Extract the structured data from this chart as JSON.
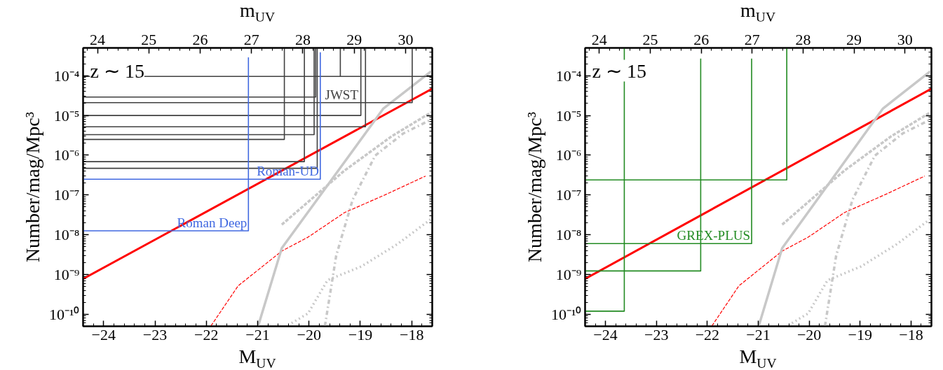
{
  "chart_data": [
    {
      "type": "line",
      "xlabel": "M$_{UV}$",
      "x2label": "m$_{UV}$",
      "ylabel": "Number/mag/Mpc³",
      "log": "y",
      "xlim": [
        -24.4,
        -17.6
      ],
      "x2lim": [
        23.72,
        30.52
      ],
      "ylim": [
        5e-11,
        0.0005
      ],
      "xticks": [
        {
          "value": -24,
          "label": "−24"
        },
        {
          "value": -23,
          "label": "−23"
        },
        {
          "value": -22,
          "label": "−22"
        },
        {
          "value": -21,
          "label": "−21"
        },
        {
          "value": -20,
          "label": "−20"
        },
        {
          "value": -19,
          "label": "−19"
        },
        {
          "value": -18,
          "label": "−18"
        }
      ],
      "x2ticks": [
        24,
        25,
        26,
        27,
        28,
        29,
        30
      ],
      "yticks": [
        {
          "value": 1e-10,
          "label": "10⁻¹⁰"
        },
        {
          "value": 1e-09,
          "label": "10⁻⁹"
        },
        {
          "value": 1e-08,
          "label": "10⁻⁸"
        },
        {
          "value": 1e-07,
          "label": "10⁻⁷"
        },
        {
          "value": 1e-06,
          "label": "10⁻⁶"
        },
        {
          "value": 1e-05,
          "label": "10⁻⁵"
        },
        {
          "value": 0.0001,
          "label": "10⁻⁴"
        }
      ],
      "annotations": [
        "z ∼ 15",
        {
          "text": "JWST",
          "x": -19.04,
          "y": 2.1e-05
        }
      ],
      "series": [
        {
          "color": "#ff0000",
          "x": [
            -24.4,
            -17.6
          ],
          "values": [
            7.8e-10,
            4.7e-05
          ]
        },
        {
          "color": "#ff0000",
          "line_style": "dashed",
          "x": [
            -21.91,
            -21.38,
            -20.53,
            -20.02,
            -19.31,
            -18.49,
            -17.73
          ],
          "values": [
            5.1e-11,
            5.2e-10,
            3.9e-09,
            8.7e-09,
            3.6e-08,
            1.05e-07,
            3e-07
          ]
        },
        {
          "color": "#c8c8c8",
          "x": [
            -20.99,
            -20.53,
            -18.55,
            -17.62
          ],
          "values": [
            5.1e-11,
            4.6e-09,
            1.5e-05,
            0.00013
          ]
        },
        {
          "color": "#c8c8c8",
          "line_style": "dashed",
          "x": [
            -20.53,
            -19.31,
            -18.39,
            -17.62
          ],
          "values": [
            1.8e-08,
            4.1e-07,
            3e-06,
            1.2e-05
          ]
        },
        {
          "color": "#c8c8c8",
          "line_style": "dashdot",
          "x": [
            -19.69,
            -19.47,
            -19.15,
            -18.71,
            -18.17,
            -17.62
          ],
          "values": [
            5.1e-11,
            3e-09,
            7.6e-08,
            9.8e-07,
            3.5e-06,
            7.9e-06
          ]
        },
        {
          "color": "#c8c8c8",
          "line_style": "dotted",
          "x": [
            -20.34,
            -20.02,
            -19.64,
            -18.98,
            -18.28,
            -17.62
          ],
          "values": [
            6e-11,
            1.05e-10,
            7.2e-10,
            1.6e-09,
            5.8e-09,
            2.5e-08
          ]
        },
        {
          "color": "#404040",
          "x": [
            -24.4,
            -20.48,
            -20.48
          ],
          "values": [
            2.5e-06,
            2.5e-06,
            0.0005
          ]
        },
        {
          "color": "#404040",
          "x": [
            -24.4,
            -20.09,
            -20.09
          ],
          "values": [
            6.9e-07,
            6.9e-07,
            0.0005
          ]
        },
        {
          "color": "#404040",
          "x": [
            -24.4,
            -19.9,
            -19.9
          ],
          "values": [
            3.3e-06,
            3.3e-06,
            0.0005
          ]
        },
        {
          "color": "#404040",
          "x": [
            -24.4,
            -19.87,
            -19.87
          ],
          "values": [
            2.9e-05,
            2.9e-05,
            0.0005
          ]
        },
        {
          "color": "#404040",
          "x": [
            -24.4,
            -19.84,
            -19.84
          ],
          "values": [
            4.7e-07,
            4.7e-07,
            0.0005
          ]
        },
        {
          "color": "#404040",
          "x": [
            -24.4,
            -19.39,
            -19.39
          ],
          "values": [
            9.6e-05,
            9.6e-05,
            0.0005
          ]
        },
        {
          "color": "#404040",
          "x": [
            -19.39,
            -17.6
          ],
          "values": [
            9.6e-05,
            9.6e-05
          ]
        },
        {
          "color": "#404040",
          "x": [
            -24.4,
            -18.99,
            -18.99
          ],
          "values": [
            1e-05,
            1e-05,
            0.0005
          ]
        },
        {
          "color": "#404040",
          "x": [
            -24.4,
            -18.9,
            -18.9
          ],
          "values": [
            5.2e-06,
            5.2e-06,
            0.0005
          ]
        },
        {
          "color": "#404040",
          "x": [
            -24.4,
            -17.99,
            -17.99
          ],
          "values": [
            2.1e-05,
            2.1e-05,
            0.0005
          ]
        },
        {
          "name": "Roman Deep",
          "color": "#4169e1",
          "x": [
            -24.4,
            -21.18,
            -21.18
          ],
          "values": [
            1.26e-08,
            1.26e-08,
            0.00029
          ]
        },
        {
          "name": "Roman-UD",
          "color": "#4169e1",
          "x": [
            -24.4,
            -19.78,
            -19.78
          ],
          "values": [
            2.5e-07,
            2.5e-07,
            0.00039
          ]
        }
      ]
    },
    {
      "type": "line",
      "xlabel": "M$_{UV}$",
      "x2label": "m$_{UV}$",
      "ylabel": "Number/mag/Mpc³",
      "log": "y",
      "xlim": [
        -24.4,
        -17.6
      ],
      "x2lim": [
        23.72,
        30.52
      ],
      "ylim": [
        5e-11,
        0.0005
      ],
      "xticks": [
        {
          "value": -24,
          "label": "−24"
        },
        {
          "value": -23,
          "label": "−23"
        },
        {
          "value": -22,
          "label": "−22"
        },
        {
          "value": -21,
          "label": "−21"
        },
        {
          "value": -20,
          "label": "−20"
        },
        {
          "value": -19,
          "label": "−19"
        },
        {
          "value": -18,
          "label": "−18"
        }
      ],
      "x2ticks": [
        24,
        25,
        26,
        27,
        28,
        29,
        30
      ],
      "yticks": [
        {
          "value": 1e-10,
          "label": "10⁻¹⁰"
        },
        {
          "value": 1e-09,
          "label": "10⁻⁹"
        },
        {
          "value": 1e-08,
          "label": "10⁻⁸"
        },
        {
          "value": 1e-07,
          "label": "10⁻⁷"
        },
        {
          "value": 1e-06,
          "label": "10⁻⁶"
        },
        {
          "value": 1e-05,
          "label": "10⁻⁵"
        },
        {
          "value": 0.0001,
          "label": "10⁻⁴"
        }
      ],
      "annotations": [
        "z ∼ 15"
      ],
      "series": [
        {
          "color": "#ff0000",
          "x": [
            -24.4,
            -17.6
          ],
          "values": [
            7.8e-10,
            4.7e-05
          ]
        },
        {
          "color": "#ff0000",
          "line_style": "dashed",
          "x": [
            -21.91,
            -21.38,
            -20.53,
            -20.02,
            -19.31,
            -18.49,
            -17.73
          ],
          "values": [
            5.1e-11,
            5.2e-10,
            3.9e-09,
            8.7e-09,
            3.6e-08,
            1.05e-07,
            3e-07
          ]
        },
        {
          "color": "#c8c8c8",
          "x": [
            -20.99,
            -20.53,
            -18.55,
            -17.62
          ],
          "values": [
            5.1e-11,
            4.6e-09,
            1.5e-05,
            0.00013
          ]
        },
        {
          "color": "#c8c8c8",
          "line_style": "dashed",
          "x": [
            -20.53,
            -19.31,
            -18.39,
            -17.62
          ],
          "values": [
            1.8e-08,
            4.1e-07,
            3e-06,
            1.2e-05
          ]
        },
        {
          "color": "#c8c8c8",
          "line_style": "dashdot",
          "x": [
            -19.69,
            -19.47,
            -19.15,
            -18.71,
            -18.17,
            -17.62
          ],
          "values": [
            5.1e-11,
            3e-09,
            7.6e-08,
            9.8e-07,
            3.5e-06,
            7.9e-06
          ]
        },
        {
          "color": "#c8c8c8",
          "line_style": "dotted",
          "x": [
            -20.34,
            -20.02,
            -19.64,
            -18.98,
            -18.28,
            -17.62
          ],
          "values": [
            6e-11,
            1.05e-10,
            7.2e-10,
            1.6e-09,
            5.8e-09,
            2.5e-08
          ]
        },
        {
          "color": "#228b22",
          "x": [
            -24.4,
            -20.44,
            -20.44
          ],
          "values": [
            2.4e-07,
            2.4e-07,
            0.0005
          ]
        },
        {
          "name": "GREX-PLUS",
          "color": "#228b22",
          "x": [
            -24.4,
            -21.13,
            -21.13
          ],
          "values": [
            6e-09,
            6e-09,
            0.00027
          ]
        },
        {
          "color": "#228b22",
          "x": [
            -24.4,
            -22.13,
            -22.13
          ],
          "values": [
            1.23e-09,
            1.23e-09,
            0.00027
          ]
        },
        {
          "color": "#228b22",
          "x": [
            -24.4,
            -23.63,
            -23.63
          ],
          "values": [
            1.2e-10,
            1.2e-10,
            0.0005
          ]
        }
      ]
    }
  ]
}
